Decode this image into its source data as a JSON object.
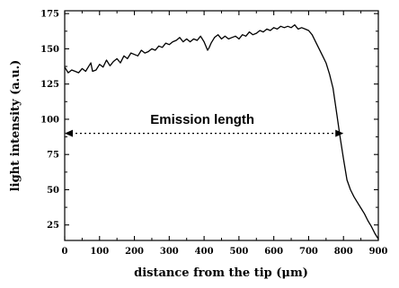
{
  "chart_data": {
    "type": "line",
    "xlabel": "distance from the tip (μm)",
    "ylabel": "light intensity (a.u.)",
    "xlim": [
      0,
      900
    ],
    "ylim": [
      14,
      177
    ],
    "x_ticks": [
      0,
      100,
      200,
      300,
      400,
      500,
      600,
      700,
      800,
      900
    ],
    "y_ticks": [
      25,
      50,
      75,
      100,
      125,
      150,
      175
    ],
    "grid": false,
    "series": [
      {
        "x": [
          0,
          10,
          20,
          30,
          40,
          50,
          60,
          70,
          75,
          80,
          90,
          100,
          110,
          120,
          130,
          140,
          150,
          160,
          170,
          180,
          190,
          200,
          210,
          220,
          230,
          240,
          250,
          260,
          270,
          280,
          290,
          300,
          310,
          320,
          330,
          340,
          350,
          360,
          370,
          380,
          390,
          400,
          410,
          415,
          420,
          430,
          440,
          450,
          460,
          470,
          480,
          490,
          500,
          510,
          520,
          530,
          540,
          550,
          560,
          570,
          580,
          590,
          600,
          610,
          620,
          630,
          640,
          650,
          660,
          670,
          680,
          690,
          700,
          710,
          720,
          730,
          740,
          750,
          760,
          770,
          780,
          790,
          800,
          810,
          820,
          830,
          840,
          850,
          860,
          870,
          880,
          890,
          900
        ],
        "y": [
          137,
          133,
          135,
          134,
          133,
          136,
          134,
          138,
          140,
          134,
          135,
          139,
          137,
          142,
          138,
          141,
          143,
          140,
          145,
          143,
          147,
          146,
          145,
          149,
          147,
          148,
          150,
          149,
          152,
          151,
          154,
          153,
          155,
          156,
          158,
          155,
          157,
          155,
          157,
          156,
          159,
          155,
          149,
          151,
          154,
          158,
          160,
          157,
          159,
          157,
          158,
          159,
          157,
          160,
          159,
          162,
          160,
          161,
          163,
          162,
          164,
          163,
          165,
          164,
          166,
          165,
          166,
          165,
          167,
          164,
          165,
          164,
          163,
          160,
          155,
          150,
          145,
          140,
          132,
          122,
          105,
          88,
          72,
          57,
          50,
          45,
          41,
          37,
          33,
          28,
          24,
          19,
          15
        ]
      }
    ],
    "annotations": [
      {
        "text": "Emission length",
        "x": 395,
        "y": 100
      },
      {
        "type": "double-arrow-dotted",
        "x1": 0,
        "x2": 800,
        "y": 90
      }
    ]
  }
}
